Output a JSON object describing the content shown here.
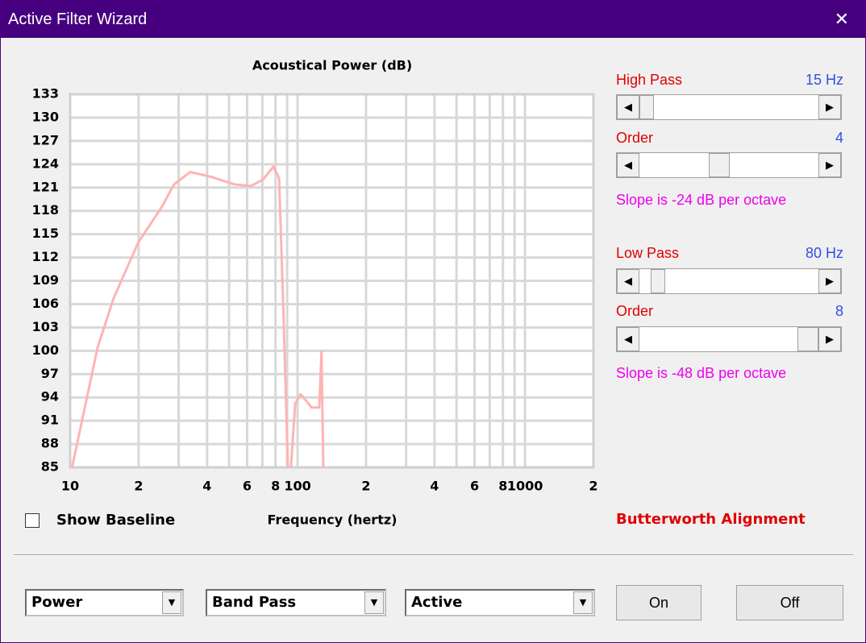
{
  "window": {
    "title": "Active Filter Wizard"
  },
  "chart_data": {
    "type": "line",
    "title": "Acoustical Power (dB)",
    "x_label": "Frequency (hertz)",
    "x_scale": "log",
    "xlim": [
      10,
      2000
    ],
    "xticks": [
      10,
      {
        "value": 20,
        "label": "2"
      },
      {
        "value": 40,
        "label": "4"
      },
      {
        "value": 60,
        "label": "6"
      },
      {
        "value": 80,
        "label": "8"
      },
      100,
      {
        "value": 200,
        "label": "2"
      },
      {
        "value": 400,
        "label": "4"
      },
      {
        "value": 600,
        "label": "6"
      },
      {
        "value": 800,
        "label": "8"
      },
      1000,
      {
        "value": 2000,
        "label": "2"
      }
    ],
    "x_minor_grid": [
      30,
      50,
      70,
      90,
      300,
      500,
      700,
      900
    ],
    "ylim": [
      85,
      133
    ],
    "yticks": [
      85,
      88,
      91,
      94,
      97,
      100,
      103,
      106,
      109,
      112,
      115,
      118,
      121,
      124,
      127,
      130,
      133
    ],
    "grid": true,
    "series": [
      {
        "color": "#ffb3b3",
        "x": [
          10.2,
          13.2,
          15.5,
          19.9,
          25.4,
          28.6,
          33.7,
          41.4,
          52.9,
          62.3,
          70.4,
          78.3,
          82.9,
          86.5,
          90.7,
          92,
          93.5,
          97.6,
          103.3,
          115.2,
          124.6,
          127.4,
          129.8
        ],
        "values": [
          85,
          100.4,
          106.7,
          113.9,
          118.6,
          121.4,
          123,
          122.4,
          121.4,
          121.2,
          122,
          123.7,
          122.2,
          105.6,
          85,
          null,
          85,
          93.2,
          94.4,
          92.7,
          92.7,
          99.9,
          85
        ]
      }
    ]
  },
  "controls": {
    "high_pass": {
      "label": "High Pass",
      "value": "15 Hz"
    },
    "high_order": {
      "label": "Order",
      "value": "4"
    },
    "high_slope": "Slope is -24 dB per octave",
    "low_pass": {
      "label": "Low Pass",
      "value": "80 Hz"
    },
    "low_order": {
      "label": "Order",
      "value": "8"
    },
    "low_slope": "Slope is -48 dB per octave",
    "alignment": "Butterworth Alignment",
    "show_baseline": "Show Baseline",
    "dropdowns": [
      "Power",
      "Band Pass",
      "Active"
    ],
    "buttons": [
      "On",
      "Off"
    ]
  }
}
